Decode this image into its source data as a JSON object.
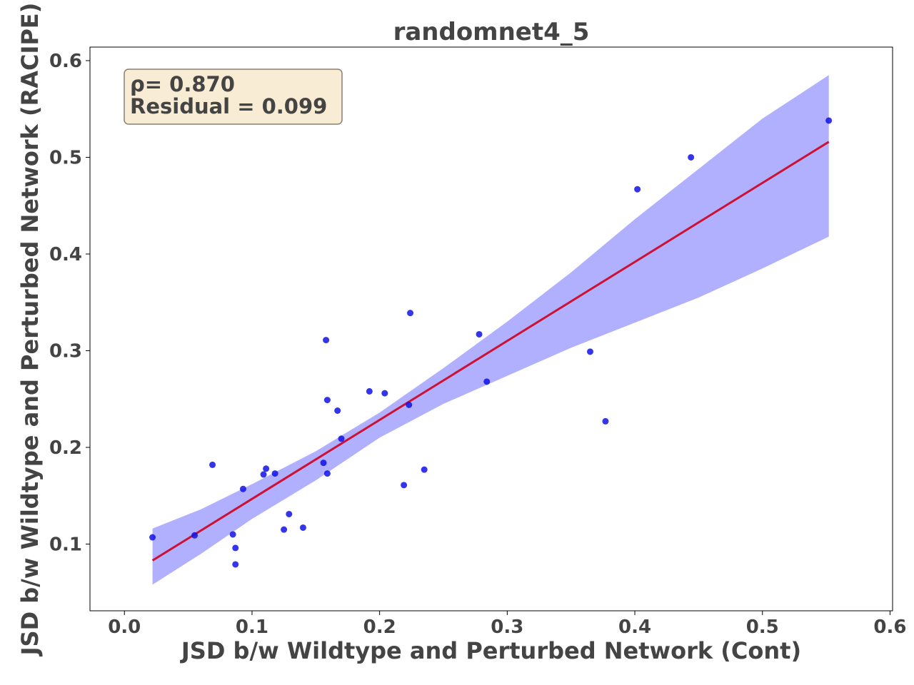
{
  "chart_data": {
    "type": "scatter",
    "title": "randomnet4_5",
    "xlabel": "JSD b/w Wildtype and Perturbed Network (Cont)",
    "ylabel": "JSD b/w Wildtype and Perturbed Network (RACIPE)",
    "xlim": [
      -0.027,
      0.602
    ],
    "ylim": [
      0.031,
      0.614
    ],
    "xticks": [
      0.0,
      0.1,
      0.2,
      0.3,
      0.4,
      0.5,
      0.6
    ],
    "xtick_labels": [
      "0.0",
      "0.1",
      "0.2",
      "0.3",
      "0.4",
      "0.5",
      "0.6"
    ],
    "yticks": [
      0.1,
      0.2,
      0.3,
      0.4,
      0.5,
      0.6
    ],
    "ytick_labels": [
      "0.1",
      "0.2",
      "0.3",
      "0.4",
      "0.5",
      "0.6"
    ],
    "grid": false,
    "annotation": {
      "line1": "ρ= 0.870",
      "line2": "Residual = 0.099"
    },
    "points": [
      [
        0.022,
        0.107
      ],
      [
        0.055,
        0.109
      ],
      [
        0.069,
        0.182
      ],
      [
        0.085,
        0.11
      ],
      [
        0.087,
        0.096
      ],
      [
        0.087,
        0.079
      ],
      [
        0.093,
        0.157
      ],
      [
        0.109,
        0.172
      ],
      [
        0.111,
        0.178
      ],
      [
        0.118,
        0.173
      ],
      [
        0.125,
        0.115
      ],
      [
        0.129,
        0.131
      ],
      [
        0.14,
        0.117
      ],
      [
        0.156,
        0.184
      ],
      [
        0.158,
        0.311
      ],
      [
        0.159,
        0.249
      ],
      [
        0.159,
        0.173
      ],
      [
        0.167,
        0.238
      ],
      [
        0.17,
        0.209
      ],
      [
        0.192,
        0.258
      ],
      [
        0.204,
        0.256
      ],
      [
        0.219,
        0.161
      ],
      [
        0.223,
        0.244
      ],
      [
        0.224,
        0.339
      ],
      [
        0.235,
        0.177
      ],
      [
        0.278,
        0.317
      ],
      [
        0.284,
        0.268
      ],
      [
        0.365,
        0.299
      ],
      [
        0.377,
        0.227
      ],
      [
        0.402,
        0.467
      ],
      [
        0.444,
        0.5
      ],
      [
        0.552,
        0.538
      ]
    ],
    "fit_line": {
      "x": [
        0.022,
        0.552
      ],
      "y": [
        0.083,
        0.516
      ]
    },
    "confidence_band": {
      "x": [
        0.022,
        0.06,
        0.1,
        0.15,
        0.2,
        0.25,
        0.3,
        0.35,
        0.4,
        0.45,
        0.5,
        0.552
      ],
      "upper": [
        0.116,
        0.136,
        0.162,
        0.196,
        0.236,
        0.282,
        0.33,
        0.381,
        0.436,
        0.488,
        0.54,
        0.585
      ],
      "lower": [
        0.058,
        0.09,
        0.126,
        0.166,
        0.21,
        0.245,
        0.274,
        0.303,
        0.329,
        0.355,
        0.385,
        0.418
      ]
    },
    "colors": {
      "points": "#1010e6",
      "fit_line": "#cc1133",
      "band": "#b0b0ff",
      "text": "#444444",
      "annotation_bg": "#f9ecd5"
    }
  }
}
